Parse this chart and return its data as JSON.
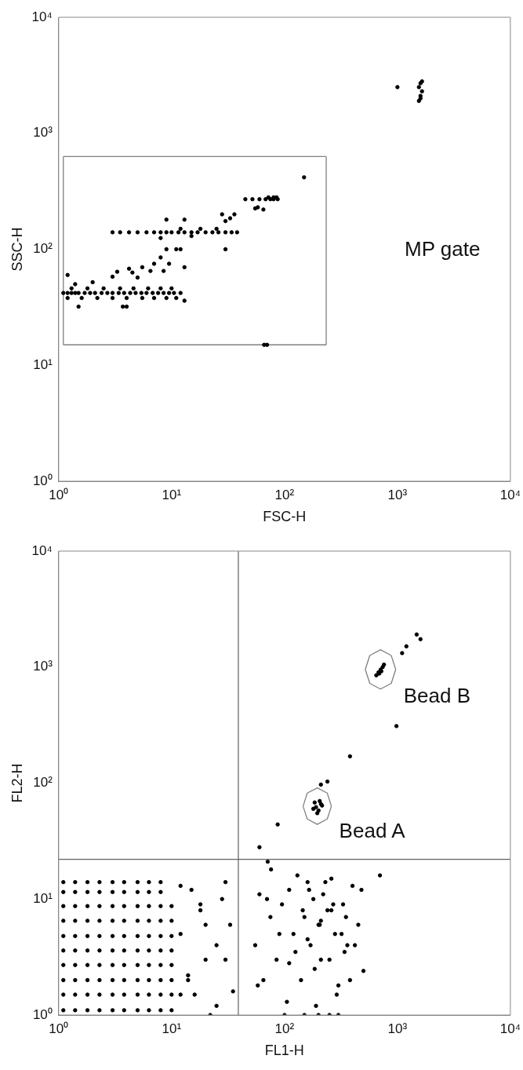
{
  "chart_data": [
    {
      "type": "scatter",
      "xlabel": "FSC-H",
      "ylabel": "SSC-H",
      "log": "xy",
      "marker": "circle",
      "xlim": [
        1,
        10000
      ],
      "ylim": [
        1,
        10000
      ],
      "xticks": [
        {
          "value": 1,
          "label": "10⁰"
        },
        {
          "value": 10,
          "label": "10¹"
        },
        {
          "value": 100,
          "label": "10²"
        },
        {
          "value": 1000,
          "label": "10³"
        },
        {
          "value": 10000,
          "label": "10⁴"
        }
      ],
      "yticks": [
        {
          "value": 1,
          "label": "10⁰"
        },
        {
          "value": 10,
          "label": "10¹"
        },
        {
          "value": 100,
          "label": "10²"
        },
        {
          "value": 1000,
          "label": "10³"
        },
        {
          "value": 10000,
          "label": "10⁴"
        }
      ],
      "annotations": [
        "MP gate"
      ],
      "series": [
        {
          "type": "scatter",
          "color": "#000000",
          "x": [
            1.1,
            1.2,
            1.3,
            1.4,
            1.5,
            1.7,
            1.9,
            2.1,
            2.4,
            2.7,
            3,
            3.4,
            3.8,
            4.3,
            4.8,
            5.4,
            6,
            6.8,
            7.6,
            8.5,
            9.5,
            10.5,
            12,
            1.2,
            1.6,
            2.2,
            3,
            4,
            5.5,
            7,
            9,
            11,
            1.3,
            1.8,
            2.5,
            3.5,
            4.6,
            6.2,
            8,
            10,
            1.5,
            3.7,
            4,
            13,
            1.2,
            1.4,
            2,
            3,
            3.3,
            4.5,
            5,
            5.5,
            6.5,
            7,
            8,
            9,
            9.5,
            11,
            12,
            13,
            4.2,
            8.5,
            3,
            3.5,
            4.2,
            5,
            6,
            7,
            8,
            9,
            10,
            11.5,
            13,
            15,
            17,
            20,
            23,
            26,
            30,
            34,
            38,
            12,
            18,
            25,
            9,
            13,
            8,
            15,
            30,
            28,
            30,
            33,
            36,
            55,
            58,
            65,
            45,
            52,
            60,
            68,
            75,
            80,
            87,
            72,
            80,
            85,
            149,
            66,
            70,
            1000,
            1550,
            1600,
            1650,
            1550,
            1600,
            1650,
            1600
          ],
          "values": [
            42,
            42,
            42,
            42,
            42,
            42,
            42,
            42,
            42,
            42,
            42,
            42,
            42,
            42,
            42,
            42,
            42,
            42,
            42,
            42,
            42,
            42,
            42,
            38,
            38,
            38,
            38,
            38,
            38,
            38,
            38,
            38,
            46,
            46,
            46,
            46,
            46,
            46,
            46,
            46,
            32,
            32,
            32,
            36,
            60,
            50,
            52,
            58,
            64,
            63,
            57,
            70,
            65,
            75,
            85,
            100,
            75,
            100,
            100,
            70,
            68,
            65,
            140,
            140,
            140,
            140,
            140,
            140,
            140,
            140,
            140,
            140,
            140,
            140,
            140,
            140,
            140,
            140,
            140,
            140,
            140,
            150,
            150,
            150,
            180,
            180,
            125,
            130,
            100,
            200,
            175,
            185,
            200,
            225,
            230,
            220,
            270,
            270,
            270,
            270,
            270,
            270,
            270,
            280,
            280,
            280,
            417,
            15,
            15,
            2500,
            1900,
            2100,
            2300,
            2500,
            2700,
            2800,
            2000
          ]
        },
        {
          "type": "line",
          "color": "#808080",
          "marker": "none",
          "x": [
            1.1,
            234
          ],
          "values": [
            630,
            630
          ]
        },
        {
          "type": "line",
          "color": "#808080",
          "marker": "none",
          "x": [
            1.1,
            234
          ],
          "values": [
            15,
            15
          ]
        },
        {
          "type": "line",
          "color": "#808080",
          "marker": "none",
          "x": [
            1.1,
            1.1
          ],
          "values": [
            15,
            630
          ]
        },
        {
          "type": "line",
          "color": "#808080",
          "marker": "none",
          "x": [
            234,
            234
          ],
          "values": [
            15,
            630
          ]
        }
      ]
    },
    {
      "type": "scatter",
      "xlabel": "FL1-H",
      "ylabel": "FL2-H",
      "log": "xy",
      "marker": "circle",
      "xlim": [
        1,
        10000
      ],
      "ylim": [
        1,
        10000
      ],
      "xticks": [
        {
          "value": 1,
          "label": "10⁰"
        },
        {
          "value": 10,
          "label": "10¹"
        },
        {
          "value": 100,
          "label": "10²"
        },
        {
          "value": 1000,
          "label": "10³"
        },
        {
          "value": 10000,
          "label": "10⁴"
        }
      ],
      "yticks": [
        {
          "value": 1,
          "label": "10⁰"
        },
        {
          "value": 10,
          "label": "10¹"
        },
        {
          "value": 100,
          "label": "10²"
        },
        {
          "value": 1000,
          "label": "10³"
        },
        {
          "value": 10000,
          "label": "10⁴"
        }
      ],
      "ref_lines": [
        {
          "axis": "x",
          "value": 39,
          "color": "#606060"
        },
        {
          "axis": "y",
          "value": 22,
          "color": "#606060"
        }
      ],
      "annotations": [
        "Bead B",
        "Bead A"
      ],
      "series": [
        {
          "type": "scatter",
          "color": "#000000",
          "x": [
            1.1,
            1.4,
            1.8,
            2.3,
            3,
            3.8,
            5,
            6.3,
            8,
            10,
            1.1,
            1.4,
            1.8,
            2.3,
            3,
            3.8,
            5,
            6.3,
            8,
            10,
            1.1,
            1.4,
            1.8,
            2.3,
            3,
            3.8,
            5,
            6.3,
            8,
            10,
            1.1,
            1.4,
            1.8,
            2.3,
            3,
            3.8,
            5,
            6.3,
            8,
            10,
            1.1,
            1.4,
            1.8,
            2.3,
            3,
            3.8,
            5,
            6.3,
            8,
            10,
            1.1,
            1.4,
            1.8,
            2.3,
            3,
            3.8,
            5,
            6.3,
            8,
            10,
            1.1,
            1.4,
            1.8,
            2.3,
            3,
            3.8,
            5,
            6.3,
            8,
            10,
            1.1,
            1.4,
            1.8,
            2.3,
            3,
            3.8,
            5,
            6.3,
            8,
            10,
            1.1,
            1.4,
            1.8,
            2.3,
            3,
            3.8,
            5,
            6.3,
            8,
            1.1,
            1.4,
            1.8,
            2.3,
            3,
            3.8,
            5,
            6.3,
            8,
            12,
            15,
            18,
            20,
            25,
            28,
            30,
            14,
            16,
            22,
            18,
            35,
            25,
            12,
            20,
            30,
            33,
            14,
            12,
            55,
            60,
            65,
            75,
            85,
            95,
            110,
            120,
            130,
            140,
            150,
            160,
            170,
            180,
            190,
            200,
            210,
            220,
            240,
            260,
            280,
            300,
            330,
            360,
            400,
            450,
            500,
            700,
            58,
            70,
            90,
            105,
            125,
            145,
            165,
            185,
            205,
            230,
            250,
            270,
            290,
            320,
            350,
            380,
            420,
            480,
            100,
            150,
            200,
            250,
            300,
            110,
            160,
            210,
            260,
            340,
            190,
            200,
            210,
            180,
            205,
            195,
            215,
            185,
            650,
            680,
            710,
            740,
            690,
            720,
            760,
            1100,
            1200,
            1480,
            1600,
            980,
            380,
            240,
            210,
            87,
            60,
            71,
            76
          ],
          "values": [
            1.1,
            1.1,
            1.1,
            1.1,
            1.1,
            1.1,
            1.1,
            1.1,
            1.1,
            1.1,
            1.5,
            1.5,
            1.5,
            1.5,
            1.5,
            1.5,
            1.5,
            1.5,
            1.5,
            1.5,
            2,
            2,
            2,
            2,
            2,
            2,
            2,
            2,
            2,
            2,
            2.7,
            2.7,
            2.7,
            2.7,
            2.7,
            2.7,
            2.7,
            2.7,
            2.7,
            2.7,
            3.6,
            3.6,
            3.6,
            3.6,
            3.6,
            3.6,
            3.6,
            3.6,
            3.6,
            3.6,
            4.8,
            4.8,
            4.8,
            4.8,
            4.8,
            4.8,
            4.8,
            4.8,
            4.8,
            4.8,
            6.5,
            6.5,
            6.5,
            6.5,
            6.5,
            6.5,
            6.5,
            6.5,
            6.5,
            6.5,
            8.7,
            8.7,
            8.7,
            8.7,
            8.7,
            8.7,
            8.7,
            8.7,
            8.7,
            8.7,
            11.5,
            11.5,
            11.5,
            11.5,
            11.5,
            11.5,
            11.5,
            11.5,
            11.5,
            14,
            14,
            14,
            14,
            14,
            14,
            14,
            14,
            14,
            13,
            12,
            8,
            6,
            4,
            10,
            3,
            2,
            1.5,
            1,
            9,
            1.6,
            1.2,
            5,
            3,
            14,
            6,
            2.2,
            1.5,
            4,
            11,
            2,
            7,
            3,
            9,
            12,
            5,
            16,
            2,
            7,
            14,
            4,
            10,
            1.2,
            6,
            3,
            11,
            8,
            15,
            5,
            1.8,
            9,
            4,
            13,
            6,
            2.4,
            16,
            1.8,
            10,
            5,
            1.3,
            3.5,
            8,
            12,
            2.5,
            6,
            14,
            3,
            9,
            1.5,
            5,
            7,
            2,
            4,
            12,
            1,
            1,
            1,
            1,
            1,
            2.8,
            4.5,
            6.5,
            8,
            3.5,
            62,
            58,
            66,
            60,
            70,
            55,
            64,
            68,
            850,
            900,
            950,
            1000,
            880,
            920,
            1050,
            1320,
            1510,
            1910,
            1740,
            310,
            170,
            103,
            97,
            44,
            28,
            21,
            18
          ]
        },
        {
          "type": "line",
          "color": "#808080",
          "marker": "none",
          "x": [
            519,
            569,
            708,
            881,
            966
          ],
          "values": [
            955,
            1259,
            1413,
            1259,
            955
          ]
        },
        {
          "type": "line",
          "color": "#808080",
          "marker": "none",
          "x": [
            519,
            569,
            708,
            881,
            966
          ],
          "values": [
            955,
            724,
            646,
            724,
            955
          ]
        },
        {
          "type": "line",
          "color": "#808080",
          "marker": "none",
          "x": [
            146,
            159,
            195,
            239,
            260
          ],
          "values": [
            63,
            82,
            91,
            82,
            63
          ]
        },
        {
          "type": "line",
          "color": "#808080",
          "marker": "none",
          "x": [
            146,
            159,
            195,
            239,
            260
          ],
          "values": [
            63,
            49,
            44,
            49,
            63
          ]
        }
      ]
    }
  ]
}
